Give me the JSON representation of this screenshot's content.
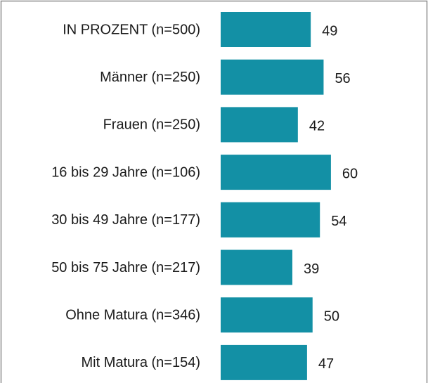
{
  "chart_data": {
    "type": "bar",
    "orientation": "horizontal",
    "categories": [
      "IN PROZENT (n=500)",
      "Männer (n=250)",
      "Frauen (n=250)",
      "16 bis 29 Jahre (n=106)",
      "30 bis 49 Jahre (n=177)",
      "50 bis 75 Jahre (n=217)",
      "Ohne Matura (n=346)",
      "Mit Matura (n=154)"
    ],
    "values": [
      49,
      56,
      42,
      60,
      54,
      39,
      50,
      47
    ],
    "color": "#1390a5"
  }
}
